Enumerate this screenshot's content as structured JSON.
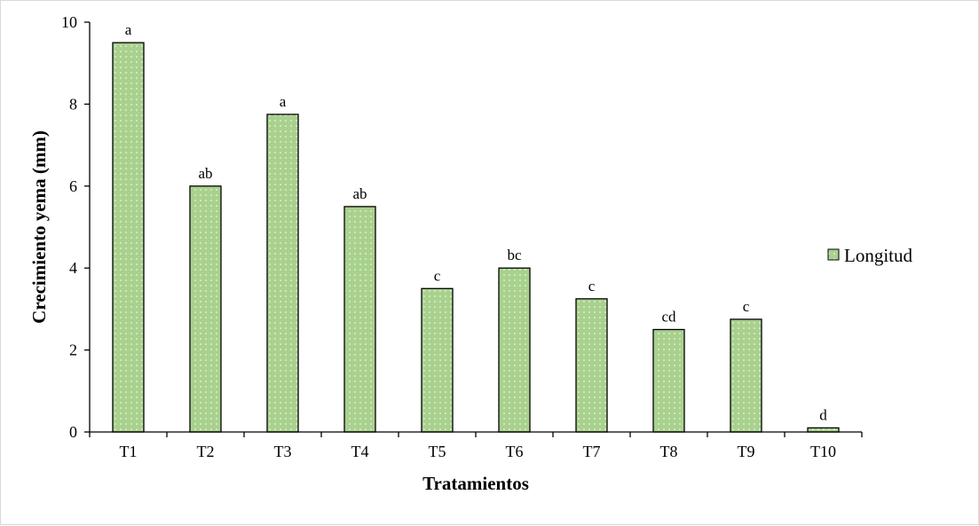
{
  "chart_data": {
    "type": "bar",
    "categories": [
      "T1",
      "T2",
      "T3",
      "T4",
      "T5",
      "T6",
      "T7",
      "T8",
      "T9",
      "T10"
    ],
    "series": [
      {
        "name": "Longitud",
        "values": [
          9.5,
          6.0,
          7.75,
          5.5,
          3.5,
          4.0,
          3.25,
          2.5,
          2.75,
          0.1
        ],
        "labels": [
          "a",
          "ab",
          "a",
          "ab",
          "c",
          "bc",
          "c",
          "cd",
          "c",
          "d"
        ]
      }
    ],
    "xlabel": "Tratamientos",
    "ylabel": "Crecimiento yema (mm)",
    "ylim": [
      0,
      10
    ],
    "yticks": [
      "0",
      "2",
      "4",
      "6",
      "8",
      "10"
    ],
    "grid": false,
    "legend_position": "right",
    "colors": {
      "bar_fill": "#a9d18e",
      "bar_dots": "#ffffff",
      "bar_stroke": "#000000",
      "axis": "#000000"
    }
  }
}
